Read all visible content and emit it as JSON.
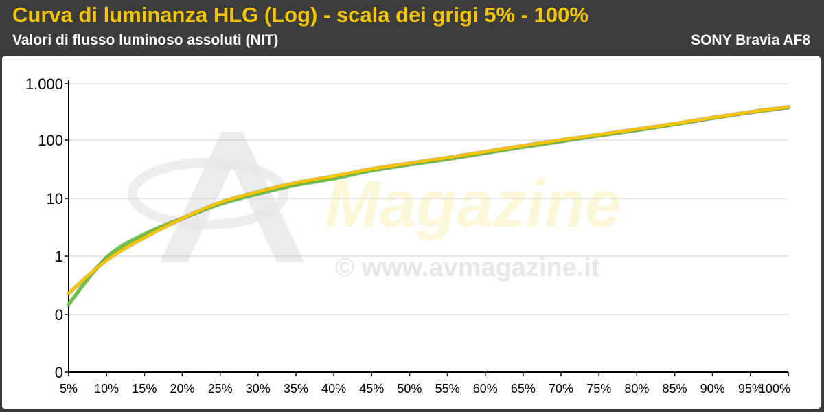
{
  "header": {
    "title": "Curva di luminanza HLG (Log) - scala dei grigi 5% - 100%",
    "subtitle": "Valori di flusso luminoso assoluti (NIT)",
    "device": "SONY Bravia AF8"
  },
  "watermark": {
    "brand": "Magazine",
    "url": "© www.avmagazine.it"
  },
  "colors": {
    "title": "#f5c400",
    "series_target": "#f5c400",
    "series_measured": "#6cc24a",
    "grid": "#cccccc"
  },
  "chart_data": {
    "type": "line",
    "title": "Curva di luminanza HLG (Log) - scala dei grigi 5% - 100%",
    "subtitle": "Valori di flusso luminoso assoluti (NIT)",
    "x_tick_labels": [
      "5%",
      "10%",
      "15%",
      "20%",
      "25%",
      "30%",
      "35%",
      "40%",
      "45%",
      "50%",
      "55%",
      "60%",
      "65%",
      "70%",
      "75%",
      "80%",
      "85%",
      "90%",
      "95%",
      "100%"
    ],
    "y_tick_labels": [
      "0",
      "0",
      "1",
      "10",
      "100",
      "1.000"
    ],
    "y_scale": "log",
    "y_tick_values": [
      0,
      0.1,
      1,
      10,
      100,
      1000
    ],
    "x": [
      5,
      10,
      15,
      20,
      25,
      30,
      35,
      40,
      45,
      50,
      55,
      60,
      65,
      70,
      75,
      80,
      85,
      90,
      95,
      100
    ],
    "series": [
      {
        "color": "#6cc24a",
        "values": [
          0.15,
          0.95,
          2.4,
          4.5,
          8,
          12,
          17,
          22,
          30,
          38,
          47,
          60,
          76,
          95,
          120,
          150,
          190,
          245,
          310,
          380
        ]
      },
      {
        "color": "#f5c400",
        "values": [
          0.23,
          0.85,
          2.1,
          4.5,
          8.5,
          13,
          18.5,
          24,
          32,
          40,
          50,
          63,
          80,
          100,
          125,
          155,
          195,
          250,
          315,
          385
        ]
      }
    ],
    "grid": true,
    "legend": "none"
  }
}
